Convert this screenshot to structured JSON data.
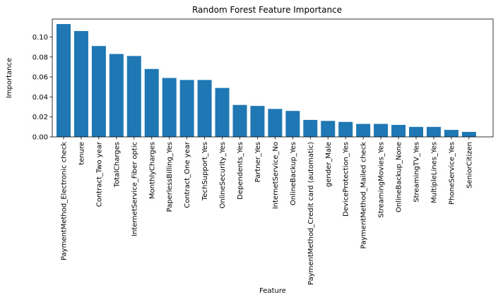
{
  "chart_data": {
    "type": "bar",
    "title": "Random Forest Feature Importance",
    "xlabel": "Feature",
    "ylabel": "Importance",
    "ylim": [
      0,
      0.118
    ],
    "yticks": [
      0.0,
      0.02,
      0.04,
      0.06,
      0.08,
      0.1
    ],
    "ytick_labels": [
      "0.00",
      "0.02",
      "0.04",
      "0.06",
      "0.08",
      "0.10"
    ],
    "grid": false,
    "bar_color": "#1f77b4",
    "categories": [
      "PaymentMethod_Electronic check",
      "tenure",
      "Contract_Two year",
      "TotalCharges",
      "InternetService_Fiber optic",
      "MonthlyCharges",
      "PaperlessBilling_Yes",
      "Contract_One year",
      "TechSupport_Yes",
      "OnlineSecurity_Yes",
      "Dependents_Yes",
      "Partner_Yes",
      "InternetService_No",
      "OnlineBackup_Yes",
      "PaymentMethod_Credit card (automatic)",
      "gender_Male",
      "DeviceProtection_Yes",
      "PaymentMethod_Mailed check",
      "StreamingMovies_Yes",
      "OnlineBackup_None",
      "StreamingTV_Yes",
      "MultipleLines_Yes",
      "PhoneService_Yes",
      "SeniorCitizen"
    ],
    "values": [
      0.113,
      0.106,
      0.091,
      0.083,
      0.081,
      0.068,
      0.059,
      0.057,
      0.057,
      0.049,
      0.032,
      0.031,
      0.028,
      0.026,
      0.017,
      0.016,
      0.015,
      0.013,
      0.013,
      0.012,
      0.01,
      0.01,
      0.007,
      0.005
    ]
  }
}
